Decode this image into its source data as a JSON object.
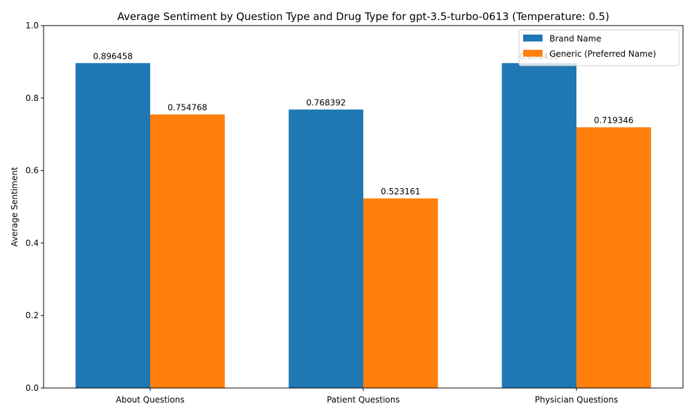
{
  "chart_data": {
    "type": "bar",
    "title": "Average Sentiment by Question Type and Drug Type for gpt-3.5-turbo-0613 (Temperature: 0.5)",
    "xlabel": "",
    "ylabel": "Average Sentiment",
    "ylim": [
      0,
      1.0
    ],
    "yticks": [
      "0.0",
      "0.2",
      "0.4",
      "0.6",
      "0.8",
      "1.0"
    ],
    "categories": [
      "About Questions",
      "Patient Questions",
      "Physician Questions"
    ],
    "series": [
      {
        "name": "Brand Name",
        "color": "#1f77b4",
        "values": [
          0.896458,
          0.768392,
          0.896458
        ],
        "labels": [
          "0.896458",
          "0.768392",
          "0.896458"
        ]
      },
      {
        "name": "Generic (Preferred Name)",
        "color": "#ff7f0e",
        "values": [
          0.754768,
          0.523161,
          0.719346
        ],
        "labels": [
          "0.754768",
          "0.523161",
          "0.719346"
        ]
      }
    ],
    "grid": false,
    "legend": "top-right"
  }
}
